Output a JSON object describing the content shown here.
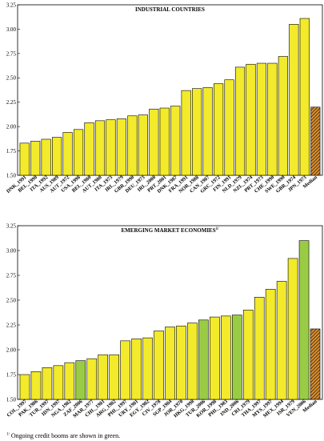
{
  "colors": {
    "bar_fill": "#f2ea2a",
    "bar_highlight_fill": "#99cc44",
    "median_fill": "#e0902a",
    "median_hatch": "#1a1a1a",
    "bar_stroke": "#000000"
  },
  "footnote": {
    "marker": "1/",
    "text": " Ongoing credit booms are shown in green."
  },
  "chart_data": [
    {
      "type": "bar",
      "title": "INDUSTRIAL COUNTRIES",
      "ylim": [
        1.5,
        3.25
      ],
      "yticks": [
        "1.50",
        "1.75",
        "2.00",
        "2.25",
        "2.50",
        "2.75",
        "3.00",
        "3.25"
      ],
      "ytick_values": [
        1.5,
        1.75,
        2.0,
        2.25,
        2.5,
        2.75,
        3.0,
        3.25
      ],
      "categories": [
        "DNK_1991",
        "BEL_1990",
        "ITA_1992",
        "AUS_1989",
        "AUT_1972",
        "USA_1998",
        "BEL_1980",
        "AUT_1980",
        "ITA_1973",
        "IRL_1979",
        "GBR_1990",
        "DEU_1973",
        "IRL_2000",
        "PRT_2001",
        "DNK_1987",
        "FRA_1991",
        "NOR_1988",
        "CAN_1987",
        "GRC_1972",
        "FIN_1991",
        "NLD_1979",
        "NZL_1974",
        "PRT_1973",
        "CHE_1990",
        "SWE_1990",
        "GBR_1974",
        "JPN_1973",
        "Median"
      ],
      "values": [
        1.83,
        1.85,
        1.87,
        1.89,
        1.94,
        1.97,
        2.04,
        2.06,
        2.07,
        2.08,
        2.11,
        2.12,
        2.18,
        2.19,
        2.21,
        2.37,
        2.39,
        2.4,
        2.44,
        2.48,
        2.61,
        2.64,
        2.65,
        2.65,
        2.72,
        3.05,
        3.11,
        2.2
      ],
      "highlighted": [],
      "median_index": 27
    },
    {
      "type": "bar",
      "title": "EMERGING MARKET ECONOMIES",
      "title_sup": "1/",
      "ylim": [
        1.5,
        3.25
      ],
      "yticks": [
        "1.50",
        "1.75",
        "2.00",
        "2.25",
        "2.50",
        "2.75",
        "3.00",
        "3.25"
      ],
      "ytick_values": [
        1.5,
        1.75,
        2.0,
        2.25,
        2.5,
        2.75,
        3.0,
        3.25
      ],
      "categories": [
        "COL_1997",
        "PAK_1986",
        "TUR_1997",
        "IDN_1997",
        "NGA_1982",
        "ZAF_2006",
        "MAR_1977",
        "CHL_1981",
        "ARG_1982",
        "PHL_1997",
        "URY_1981",
        "EGY_1982",
        "CIV_1978",
        "SGP_1984",
        "JOR_1970",
        "HKG_1998",
        "TUR_2006",
        "KOR_1998",
        "PHL_1983",
        "IND_2006",
        "CRI_1979",
        "THA_1997",
        "MYS_1997",
        "MEX_1994",
        "ISR_1979",
        "VEN_2006",
        "Median"
      ],
      "values": [
        1.75,
        1.78,
        1.82,
        1.84,
        1.87,
        1.89,
        1.91,
        1.95,
        1.95,
        2.09,
        2.11,
        2.12,
        2.19,
        2.23,
        2.24,
        2.27,
        2.3,
        2.33,
        2.34,
        2.35,
        2.4,
        2.53,
        2.61,
        2.69,
        2.92,
        3.1,
        2.21
      ],
      "highlighted": [
        5,
        16,
        19,
        25
      ],
      "median_index": 26
    }
  ]
}
